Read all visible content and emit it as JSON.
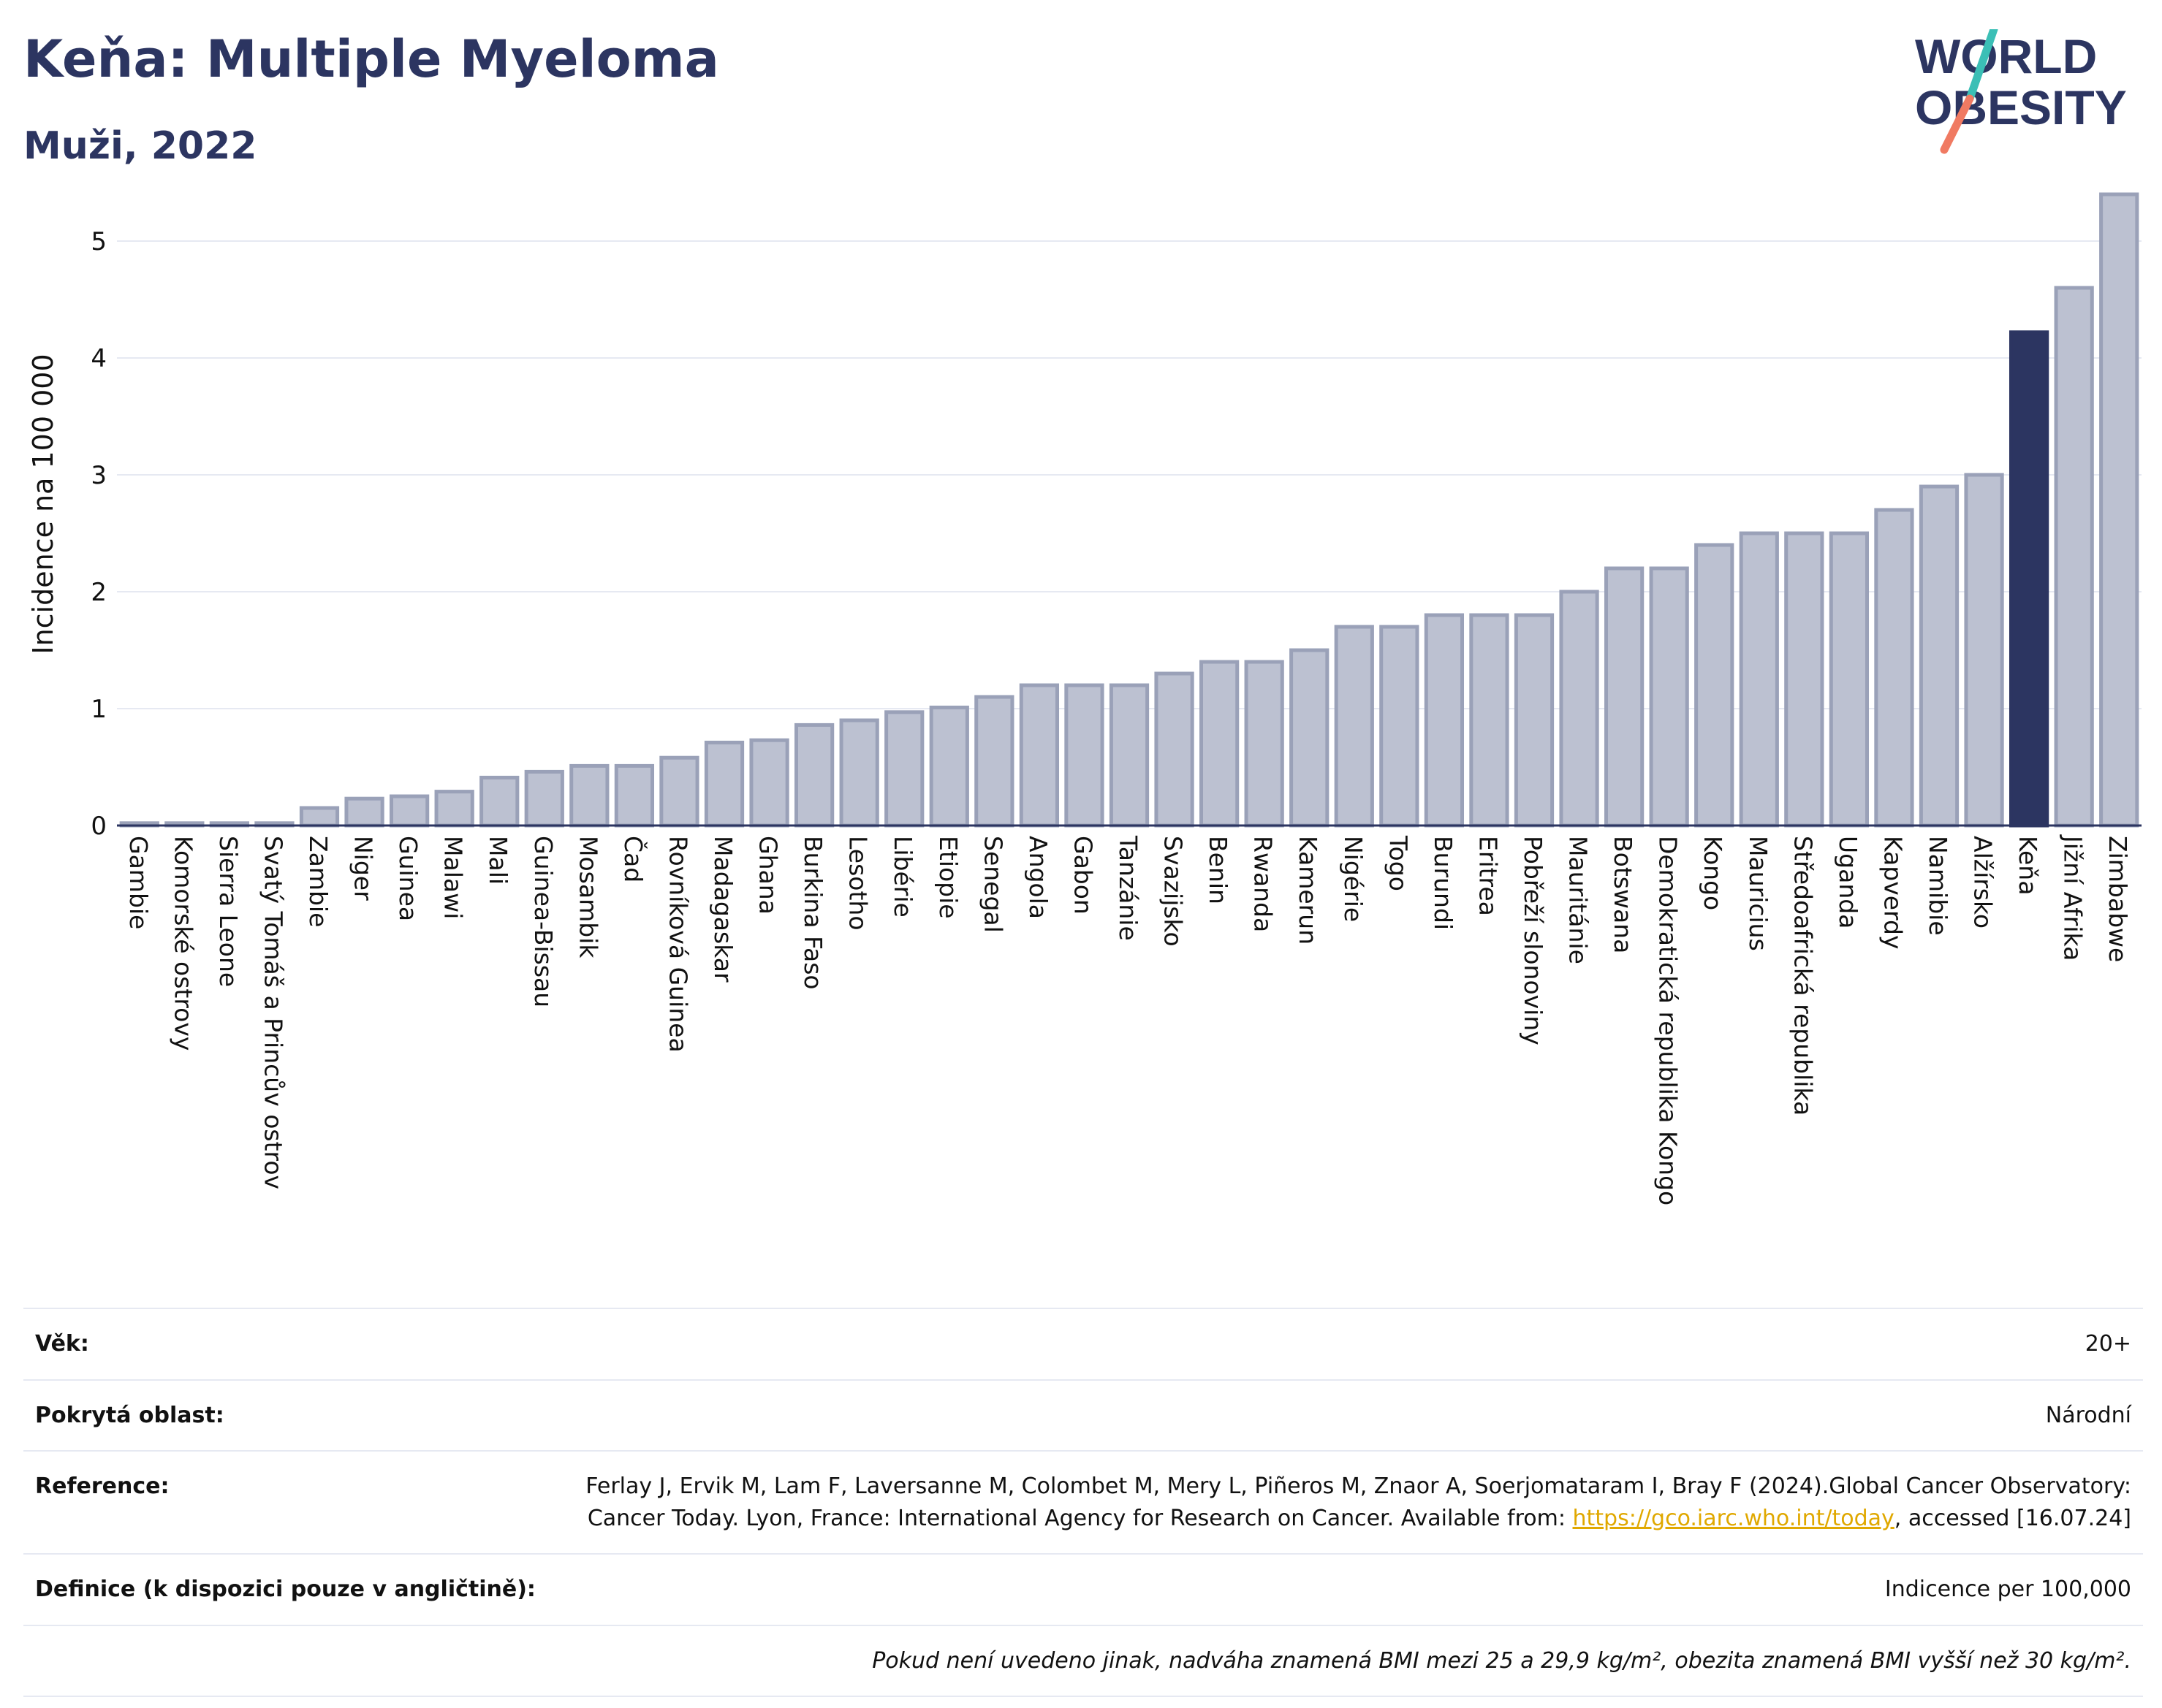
{
  "header": {
    "title": "Keňa: Multiple Myeloma",
    "subtitle": "Muži, 2022"
  },
  "logo": {
    "line1": "WORLD",
    "line2": "OBESITY"
  },
  "colors": {
    "brand": "#2c3561",
    "bar": "#bcc1d1",
    "bar_border": "#9aa1b8",
    "highlight": "#2c3561",
    "grid": "#e6e9f2",
    "logo_teal": "#3bbfb6",
    "logo_coral": "#f07a62"
  },
  "chart_data": {
    "type": "bar",
    "ylabel": "Incidence na 100 000",
    "ylim": [
      0,
      5.5
    ],
    "yticks": [
      0,
      1,
      2,
      3,
      4,
      5
    ],
    "grid": true,
    "highlight": "Keňa",
    "categories": [
      "Gambie",
      "Komorské ostrovy",
      "Sierra Leone",
      "Svatý Tomáš a Princův ostrov",
      "Zambie",
      "Niger",
      "Guinea",
      "Malawi",
      "Mali",
      "Guinea-Bissau",
      "Mosambik",
      "Čad",
      "Rovníková Guinea",
      "Madagaskar",
      "Ghana",
      "Burkina Faso",
      "Lesotho",
      "Libérie",
      "Etiopie",
      "Senegal",
      "Angola",
      "Gabon",
      "Tanzánie",
      "Svazijsko",
      "Benin",
      "Rwanda",
      "Kamerun",
      "Nigérie",
      "Togo",
      "Burundi",
      "Eritrea",
      "Pobřeží slonoviny",
      "Mauritánie",
      "Botswana",
      "Demokratická republika Kongo",
      "Kongo",
      "Mauricius",
      "Středoafrická republika",
      "Uganda",
      "Kapverdy",
      "Namibie",
      "Alžírsko",
      "Keňa",
      "Jižní Afrika",
      "Zimbabwe"
    ],
    "values": [
      0.02,
      0.02,
      0.02,
      0.02,
      0.15,
      0.23,
      0.25,
      0.29,
      0.41,
      0.46,
      0.51,
      0.51,
      0.58,
      0.71,
      0.73,
      0.86,
      0.9,
      0.97,
      1.01,
      1.1,
      1.2,
      1.2,
      1.2,
      1.3,
      1.4,
      1.4,
      1.5,
      1.7,
      1.7,
      1.8,
      1.8,
      1.8,
      2.0,
      2.2,
      2.2,
      2.4,
      2.5,
      2.5,
      2.5,
      2.7,
      2.9,
      3.0,
      4.22,
      4.6,
      5.4
    ]
  },
  "info": {
    "age_label": "Věk:",
    "age_value": "20+",
    "area_label": "Pokrytá oblast:",
    "area_value": "Národní",
    "ref_label": "Reference:",
    "ref_text1": "Ferlay J, Ervik M, Lam F, Laversanne M, Colombet M, Mery L, Piñeros M, Znaor A, Soerjomataram I, Bray F (2024).Global Cancer Observatory: Cancer Today. Lyon, France: International Agency for Research on Cancer. Available from: ",
    "ref_link": "https://gco.iarc.who.int/today",
    "ref_text2": ", accessed [16.07.24]",
    "def_label": "Definice (k dispozici pouze v angličtině):",
    "def_value": "Indicence per 100,000",
    "note": "Pokud není uvedeno jinak, nadváha znamená BMI mezi 25 a 29,9 kg/m², obezita znamená BMI vyšší než 30 kg/m²."
  }
}
